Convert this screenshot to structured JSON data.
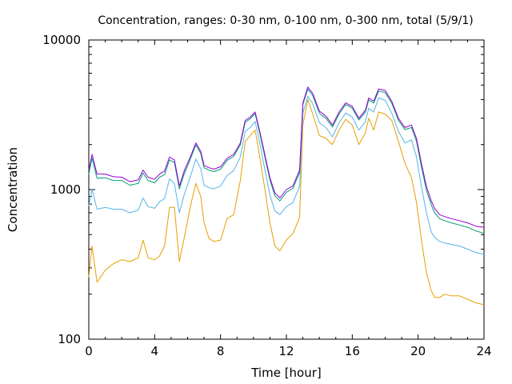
{
  "chart_data": {
    "type": "line",
    "title": "Concentration, ranges: 0-30 nm, 0-100 nm, 0-300 nm, total (5/9/1)",
    "xlabel": "Time [hour]",
    "ylabel": "Concentration",
    "xlim": [
      0,
      24
    ],
    "ylim": [
      100,
      10000
    ],
    "yscale": "log",
    "xticks": [
      0,
      4,
      8,
      12,
      16,
      20,
      24
    ],
    "yticks": [
      100,
      1000,
      10000
    ],
    "xtick_labels": [
      "0",
      "4",
      "8",
      "12",
      "16",
      "20",
      "24"
    ],
    "ytick_labels": [
      "100",
      "1000",
      "10000"
    ],
    "grid": false,
    "legend": false,
    "x": [
      0,
      0.2,
      0.5,
      1,
      1.5,
      2,
      2.5,
      3,
      3.3,
      3.6,
      4,
      4.3,
      4.6,
      4.9,
      5.2,
      5.5,
      5.8,
      6.2,
      6.5,
      6.8,
      7.0,
      7.3,
      7.6,
      8.0,
      8.4,
      8.8,
      9.2,
      9.5,
      9.8,
      10.1,
      10.4,
      10.7,
      11.0,
      11.3,
      11.6,
      12.0,
      12.4,
      12.8,
      13.0,
      13.3,
      13.6,
      14.0,
      14.4,
      14.8,
      15.2,
      15.6,
      16.0,
      16.4,
      16.8,
      17.0,
      17.3,
      17.6,
      18.0,
      18.4,
      18.8,
      19.2,
      19.6,
      19.9,
      20.2,
      20.5,
      20.8,
      21.0,
      21.3,
      21.6,
      22.0,
      22.5,
      23.0,
      23.5,
      24.0
    ],
    "series": [
      {
        "color": "#9400d3",
        "values": [
          1350,
          1720,
          1270,
          1270,
          1220,
          1210,
          1130,
          1160,
          1350,
          1210,
          1170,
          1270,
          1330,
          1650,
          1580,
          1060,
          1340,
          1690,
          2050,
          1800,
          1450,
          1400,
          1370,
          1420,
          1620,
          1720,
          2050,
          2900,
          3050,
          3300,
          2400,
          1700,
          1200,
          950,
          880,
          1000,
          1060,
          1350,
          3800,
          4850,
          4400,
          3350,
          3100,
          2700,
          3300,
          3800,
          3600,
          3000,
          3400,
          4100,
          3900,
          4700,
          4600,
          3900,
          3000,
          2600,
          2700,
          2200,
          1500,
          1050,
          840,
          750,
          680,
          660,
          640,
          620,
          600,
          570,
          560
        ]
      },
      {
        "color": "#009e73",
        "values": [
          1270,
          1620,
          1190,
          1200,
          1150,
          1150,
          1070,
          1100,
          1290,
          1150,
          1110,
          1210,
          1260,
          1580,
          1520,
          1010,
          1280,
          1630,
          1990,
          1740,
          1400,
          1350,
          1320,
          1370,
          1570,
          1670,
          1990,
          2820,
          2970,
          3220,
          2330,
          1640,
          1160,
          910,
          840,
          960,
          1020,
          1300,
          3700,
          4700,
          4250,
          3240,
          3000,
          2620,
          3200,
          3700,
          3500,
          2920,
          3300,
          3980,
          3780,
          4560,
          4450,
          3780,
          2900,
          2520,
          2600,
          2110,
          1420,
          990,
          790,
          700,
          640,
          620,
          600,
          580,
          560,
          530,
          510
        ]
      },
      {
        "color": "#56b4e9",
        "values": [
          780,
          1000,
          740,
          760,
          740,
          740,
          700,
          730,
          880,
          770,
          750,
          830,
          870,
          1180,
          1100,
          700,
          930,
          1250,
          1600,
          1380,
          1070,
          1030,
          1010,
          1060,
          1240,
          1340,
          1650,
          2450,
          2600,
          2850,
          2000,
          1350,
          920,
          720,
          680,
          770,
          820,
          1050,
          3250,
          4200,
          3750,
          2800,
          2600,
          2250,
          2800,
          3250,
          3050,
          2500,
          2850,
          3500,
          3300,
          4100,
          3950,
          3250,
          2450,
          2050,
          2150,
          1650,
          1050,
          700,
          520,
          480,
          450,
          440,
          430,
          420,
          400,
          380,
          370
        ]
      },
      {
        "color": "#e69f00",
        "values": [
          260,
          420,
          240,
          290,
          320,
          340,
          330,
          350,
          460,
          350,
          340,
          360,
          420,
          760,
          760,
          330,
          480,
          800,
          1100,
          900,
          600,
          470,
          450,
          460,
          640,
          680,
          1150,
          2100,
          2300,
          2500,
          1600,
          1000,
          600,
          420,
          390,
          460,
          510,
          650,
          2700,
          4000,
          3200,
          2300,
          2200,
          2000,
          2500,
          2950,
          2700,
          2000,
          2400,
          3000,
          2500,
          3300,
          3200,
          2900,
          2100,
          1500,
          1200,
          820,
          460,
          280,
          210,
          190,
          190,
          200,
          195,
          195,
          185,
          175,
          170
        ]
      }
    ]
  }
}
